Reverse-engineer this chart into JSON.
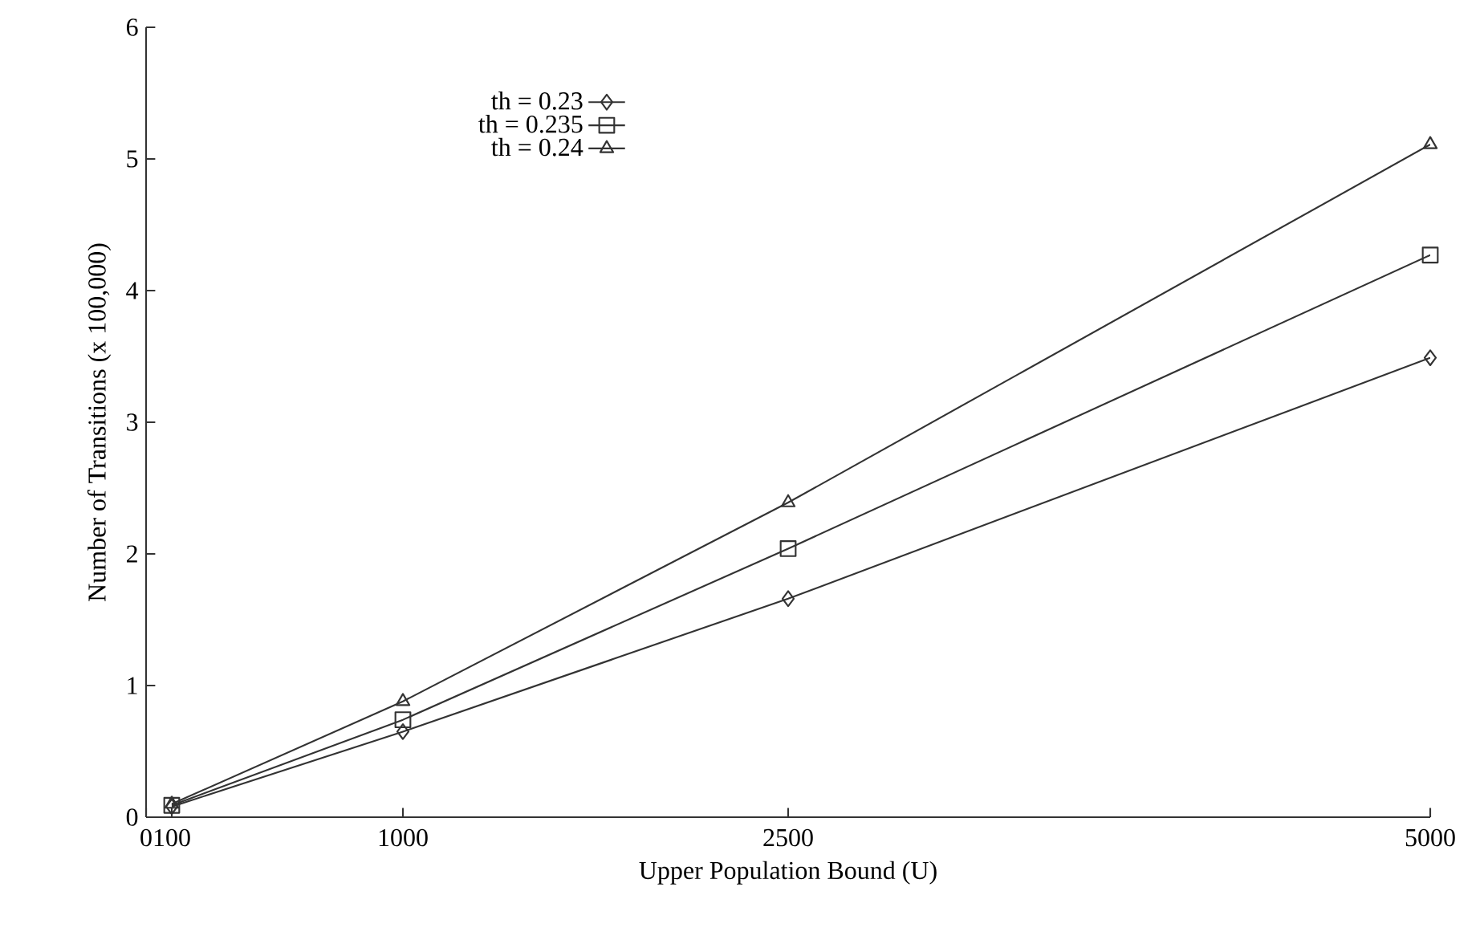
{
  "chart_data": {
    "type": "line",
    "xlabel": "Upper Population Bound (U)",
    "ylabel": "Number of Transitions (x 100,000)",
    "x": [
      100,
      1000,
      2500,
      5000
    ],
    "series": [
      {
        "name": "th = 0.23",
        "color": "#333333",
        "marker": "diamond",
        "values": [
          0.08,
          0.65,
          1.66,
          3.49
        ]
      },
      {
        "name": "th = 0.235",
        "color": "#333333",
        "marker": "square",
        "values": [
          0.09,
          0.74,
          2.04,
          4.27
        ]
      },
      {
        "name": "th = 0.24",
        "color": "#333333",
        "marker": "triangle",
        "values": [
          0.1,
          0.88,
          2.39,
          5.11
        ]
      }
    ],
    "xlim": [
      0,
      5000
    ],
    "xticks": [
      0,
      100,
      1000,
      2500,
      5000
    ],
    "ylim": [
      0,
      6
    ],
    "yticks": [
      0,
      1,
      2,
      3,
      4,
      5,
      6
    ],
    "grid": false,
    "legend": "top left",
    "line_style": "solid"
  }
}
